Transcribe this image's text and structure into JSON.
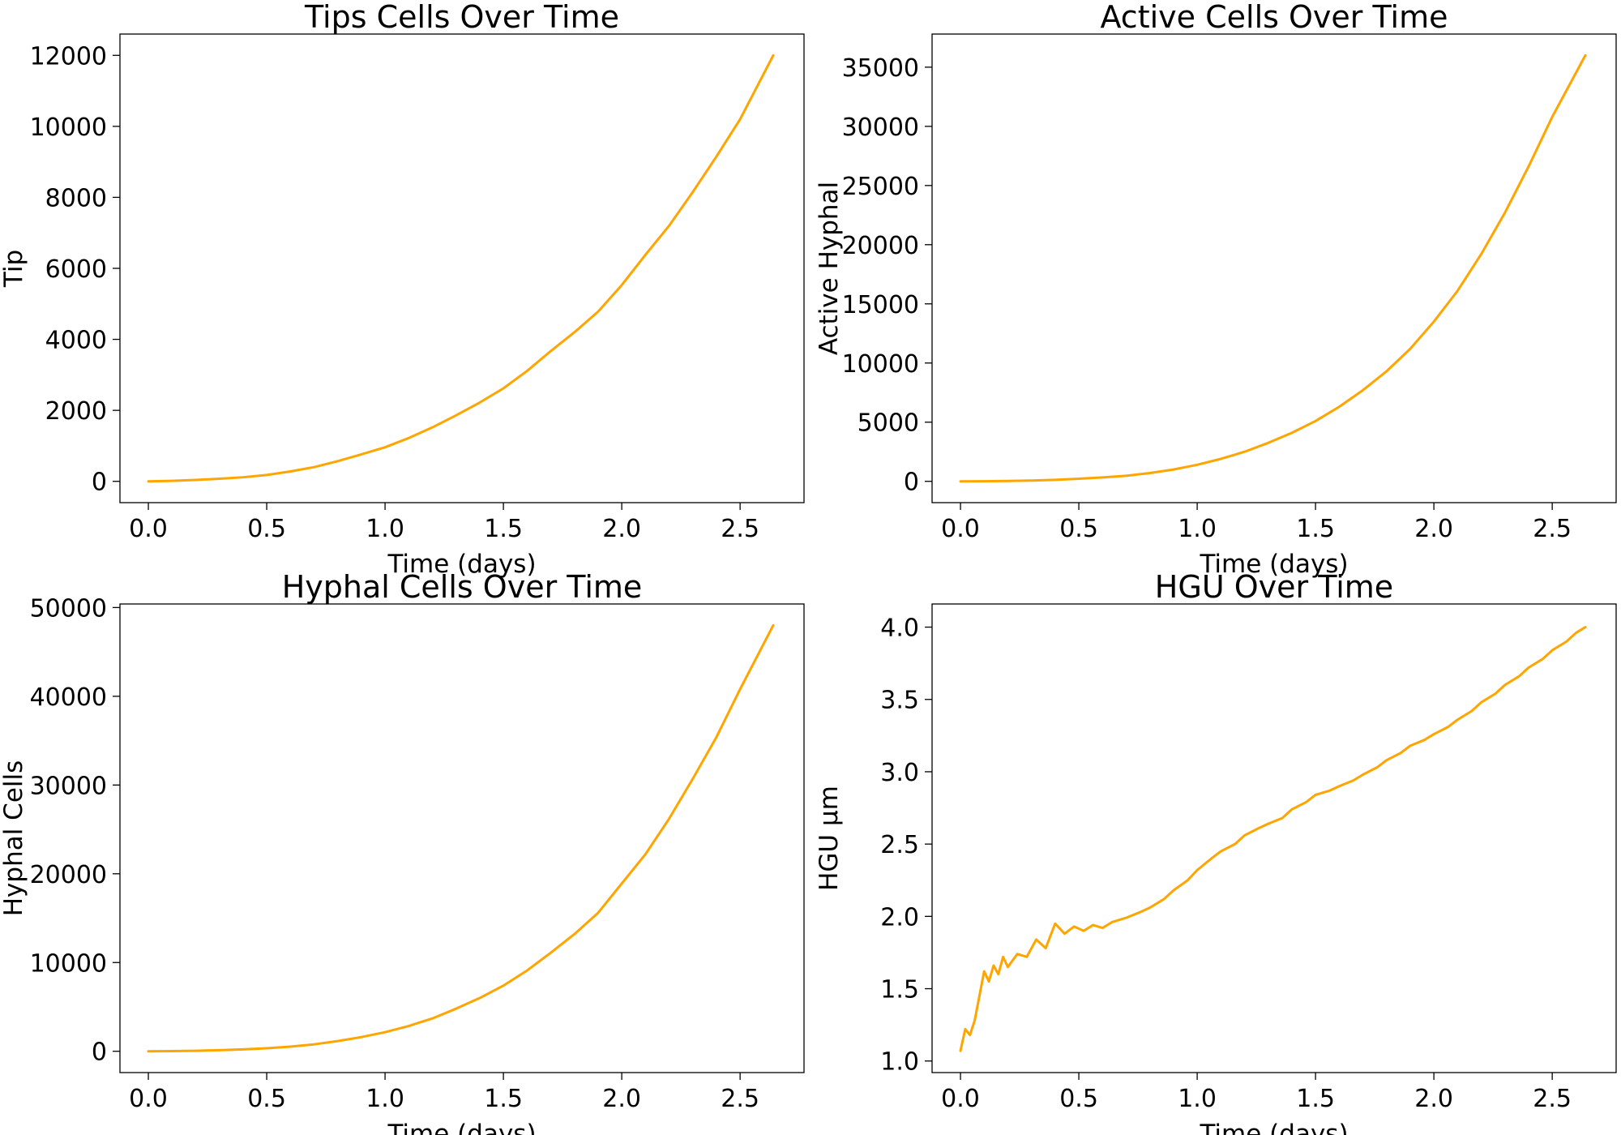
{
  "colors": {
    "series": "#FFA500",
    "axes": "#000000",
    "background": "#FFFFFF"
  },
  "chart_data": [
    {
      "id": "tips",
      "type": "line",
      "title": "Tips Cells Over Time",
      "xlabel": "Time (days)",
      "ylabel": "Tip",
      "xlim": [
        -0.12,
        2.77
      ],
      "ylim": [
        -600,
        12600
      ],
      "xticks": [
        0.0,
        0.5,
        1.0,
        1.5,
        2.0,
        2.5
      ],
      "xtick_labels": [
        "0.0",
        "0.5",
        "1.0",
        "1.5",
        "2.0",
        "2.5"
      ],
      "yticks": [
        0,
        2000,
        4000,
        6000,
        8000,
        10000,
        12000
      ],
      "ytick_labels": [
        "0",
        "2000",
        "4000",
        "6000",
        "8000",
        "10000",
        "12000"
      ],
      "grid": false,
      "series": [
        {
          "x": [
            0.0,
            0.1,
            0.2,
            0.3,
            0.4,
            0.5,
            0.6,
            0.7,
            0.8,
            0.9,
            1.0,
            1.1,
            1.2,
            1.3,
            1.4,
            1.5,
            1.6,
            1.7,
            1.8,
            1.9,
            2.0,
            2.1,
            2.2,
            2.3,
            2.4,
            2.5,
            2.64
          ],
          "y": [
            0,
            15,
            40,
            75,
            115,
            180,
            280,
            400,
            570,
            760,
            960,
            1220,
            1520,
            1860,
            2220,
            2620,
            3110,
            3670,
            4200,
            4780,
            5530,
            6380,
            7200,
            8150,
            9150,
            10200,
            12000
          ]
        }
      ]
    },
    {
      "id": "active",
      "type": "line",
      "title": "Active Cells Over Time",
      "xlabel": "Time (days)",
      "ylabel": "Active Hyphal",
      "xlim": [
        -0.12,
        2.77
      ],
      "ylim": [
        -1800,
        37800
      ],
      "xticks": [
        0.0,
        0.5,
        1.0,
        1.5,
        2.0,
        2.5
      ],
      "xtick_labels": [
        "0.0",
        "0.5",
        "1.0",
        "1.5",
        "2.0",
        "2.5"
      ],
      "yticks": [
        0,
        5000,
        10000,
        15000,
        20000,
        25000,
        30000,
        35000
      ],
      "ytick_labels": [
        "0",
        "5000",
        "10000",
        "15000",
        "20000",
        "25000",
        "30000",
        "35000"
      ],
      "grid": false,
      "series": [
        {
          "x": [
            0.0,
            0.1,
            0.2,
            0.3,
            0.4,
            0.5,
            0.6,
            0.7,
            0.8,
            0.9,
            1.0,
            1.1,
            1.2,
            1.3,
            1.4,
            1.5,
            1.6,
            1.7,
            1.8,
            1.9,
            2.0,
            2.1,
            2.2,
            2.3,
            2.4,
            2.5,
            2.64
          ],
          "y": [
            0,
            8,
            30,
            70,
            130,
            220,
            330,
            470,
            700,
            1000,
            1400,
            1900,
            2500,
            3250,
            4100,
            5100,
            6300,
            7700,
            9300,
            11200,
            13500,
            16100,
            19200,
            22700,
            26600,
            30800,
            36000
          ]
        }
      ]
    },
    {
      "id": "hyphal",
      "type": "line",
      "title": "Hyphal Cells Over Time",
      "xlabel": "Time (days)",
      "ylabel": "Hyphal Cells",
      "xlim": [
        -0.12,
        2.77
      ],
      "ylim": [
        -2400,
        50400
      ],
      "xticks": [
        0.0,
        0.5,
        1.0,
        1.5,
        2.0,
        2.5
      ],
      "xtick_labels": [
        "0.0",
        "0.5",
        "1.0",
        "1.5",
        "2.0",
        "2.5"
      ],
      "yticks": [
        0,
        10000,
        20000,
        30000,
        40000,
        50000
      ],
      "ytick_labels": [
        "0",
        "10000",
        "20000",
        "30000",
        "40000",
        "50000"
      ],
      "grid": false,
      "series": [
        {
          "x": [
            0.0,
            0.1,
            0.2,
            0.3,
            0.4,
            0.5,
            0.6,
            0.7,
            0.8,
            0.9,
            1.0,
            1.1,
            1.2,
            1.3,
            1.4,
            1.5,
            1.6,
            1.7,
            1.8,
            1.9,
            2.0,
            2.1,
            2.2,
            2.3,
            2.4,
            2.5,
            2.64
          ],
          "y": [
            0,
            20,
            60,
            120,
            210,
            340,
            520,
            780,
            1150,
            1600,
            2150,
            2850,
            3700,
            4800,
            6000,
            7400,
            9100,
            11100,
            13200,
            15600,
            18900,
            22200,
            26200,
            30700,
            35400,
            40800,
            48000
          ]
        }
      ]
    },
    {
      "id": "hgu",
      "type": "line",
      "title": "HGU Over Time",
      "xlabel": "Time (days)",
      "ylabel": "HGU µm",
      "xlim": [
        -0.12,
        2.77
      ],
      "ylim": [
        0.92,
        4.16
      ],
      "xticks": [
        0.0,
        0.5,
        1.0,
        1.5,
        2.0,
        2.5
      ],
      "xtick_labels": [
        "0.0",
        "0.5",
        "1.0",
        "1.5",
        "2.0",
        "2.5"
      ],
      "yticks": [
        1.0,
        1.5,
        2.0,
        2.5,
        3.0,
        3.5,
        4.0
      ],
      "ytick_labels": [
        "1.0",
        "1.5",
        "2.0",
        "2.5",
        "3.0",
        "3.5",
        "4.0"
      ],
      "grid": false,
      "series": [
        {
          "x": [
            0.0,
            0.02,
            0.04,
            0.06,
            0.08,
            0.1,
            0.12,
            0.14,
            0.16,
            0.18,
            0.2,
            0.24,
            0.28,
            0.32,
            0.36,
            0.4,
            0.44,
            0.48,
            0.52,
            0.56,
            0.6,
            0.64,
            0.7,
            0.76,
            0.8,
            0.86,
            0.9,
            0.96,
            1.0,
            1.06,
            1.1,
            1.16,
            1.2,
            1.26,
            1.3,
            1.36,
            1.4,
            1.46,
            1.5,
            1.56,
            1.6,
            1.66,
            1.7,
            1.76,
            1.8,
            1.86,
            1.9,
            1.96,
            2.0,
            2.06,
            2.1,
            2.16,
            2.2,
            2.26,
            2.3,
            2.36,
            2.4,
            2.46,
            2.5,
            2.56,
            2.6,
            2.64
          ],
          "y": [
            1.07,
            1.22,
            1.18,
            1.28,
            1.45,
            1.62,
            1.55,
            1.66,
            1.6,
            1.72,
            1.65,
            1.74,
            1.72,
            1.84,
            1.78,
            1.95,
            1.88,
            1.93,
            1.9,
            1.94,
            1.92,
            1.96,
            1.99,
            2.03,
            2.06,
            2.12,
            2.18,
            2.25,
            2.32,
            2.4,
            2.45,
            2.5,
            2.56,
            2.61,
            2.64,
            2.68,
            2.74,
            2.79,
            2.84,
            2.87,
            2.9,
            2.94,
            2.98,
            3.03,
            3.08,
            3.13,
            3.18,
            3.22,
            3.26,
            3.31,
            3.36,
            3.42,
            3.48,
            3.54,
            3.6,
            3.66,
            3.72,
            3.78,
            3.84,
            3.9,
            3.96,
            4.0
          ]
        }
      ]
    }
  ]
}
